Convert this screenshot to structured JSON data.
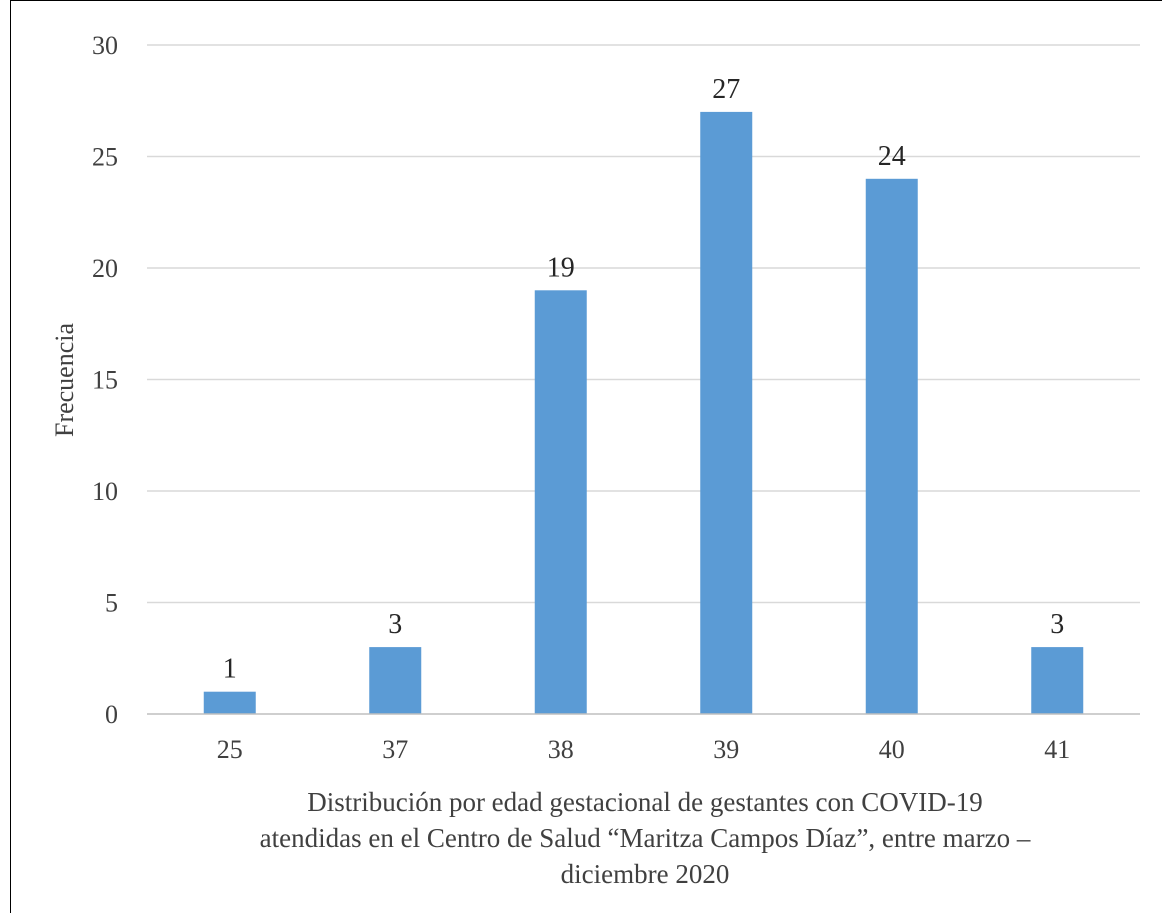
{
  "chart_data": {
    "type": "bar",
    "categories": [
      "25",
      "37",
      "38",
      "39",
      "40",
      "41"
    ],
    "values": [
      1,
      3,
      19,
      27,
      24,
      3
    ],
    "data_labels": [
      "1",
      "3",
      "19",
      "27",
      "24",
      "3"
    ],
    "title": "",
    "ylabel": "Frecuencia",
    "xlabel_lines": [
      "Distribución por edad gestacional de gestantes con COVID-19",
      "atendidas en el Centro de Salud “Maritza Campos Díaz”, entre marzo –",
      "diciembre 2020"
    ],
    "ylim": [
      0,
      30
    ],
    "yticks": [
      "0",
      "5",
      "10",
      "15",
      "20",
      "25",
      "30"
    ],
    "grid": true,
    "legend": "none",
    "colors": {
      "bar": "#5b9bd5",
      "grid": "#d9d9d9",
      "axis": "#bfbfbf",
      "text": "#404040"
    }
  }
}
